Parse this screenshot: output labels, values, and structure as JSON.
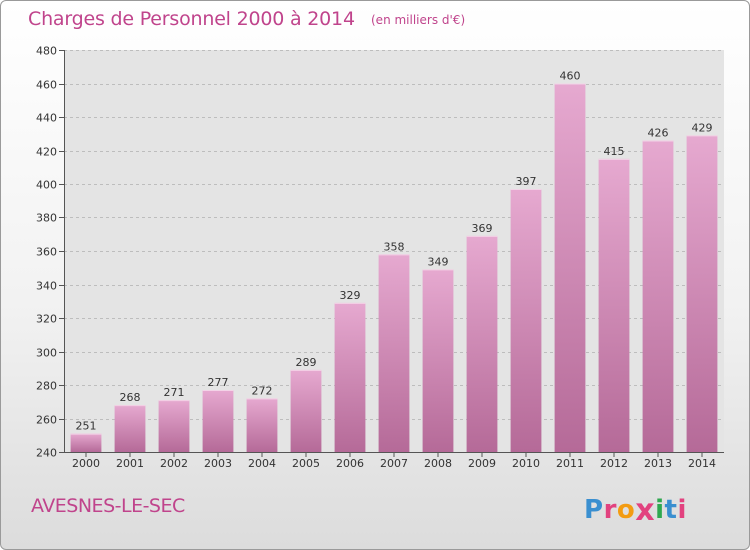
{
  "header": {
    "title": "Charges de Personnel 2000 à 2014",
    "unit": "(en milliers d'€)"
  },
  "footer": {
    "city": "AVESNES-LE-SEC",
    "brand": "Proxiti",
    "brand_letters": [
      {
        "char": "P",
        "color": "#3a8fd0"
      },
      {
        "char": "r",
        "color": "#e2427f"
      },
      {
        "char": "o",
        "color": "#f39c12"
      },
      {
        "char": "x",
        "color": "#e2427f"
      },
      {
        "char": "i",
        "color": "#2fa84f"
      },
      {
        "char": "t",
        "color": "#3a8fd0"
      },
      {
        "char": "i",
        "color": "#e2427f"
      }
    ]
  },
  "colors": {
    "accent": "#c0448c",
    "bar_top": "#e6a9d0",
    "bar_bottom": "#b56a98"
  },
  "chart_data": {
    "type": "bar",
    "title": "Charges de Personnel 2000 à 2014",
    "subtitle": "(en milliers d'€)",
    "xlabel": "",
    "ylabel": "",
    "categories": [
      "2000",
      "2001",
      "2002",
      "2003",
      "2004",
      "2005",
      "2006",
      "2007",
      "2008",
      "2009",
      "2010",
      "2011",
      "2012",
      "2013",
      "2014"
    ],
    "values": [
      251,
      268,
      271,
      277,
      272,
      289,
      329,
      358,
      349,
      369,
      397,
      460,
      415,
      426,
      429
    ],
    "ylim": [
      240,
      480
    ],
    "yticks": [
      240,
      260,
      280,
      300,
      320,
      340,
      360,
      380,
      400,
      420,
      440,
      460,
      480
    ],
    "grid": true,
    "data_labels": true
  }
}
